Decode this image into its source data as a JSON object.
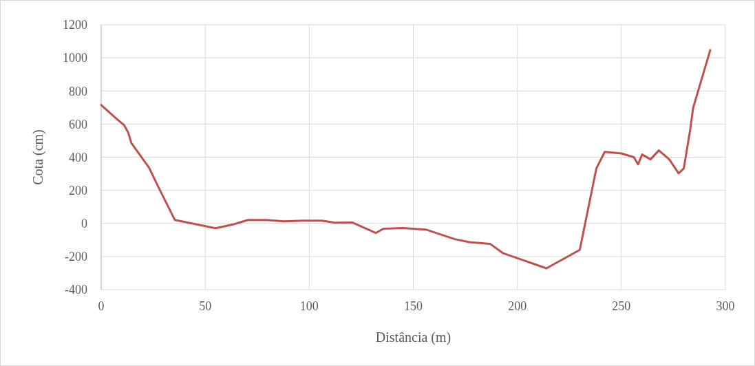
{
  "chart_data": {
    "type": "line",
    "xlabel": "Distância (m)",
    "ylabel": "Cota (cm)",
    "xlim": [
      0,
      300
    ],
    "xticks": [
      0,
      50,
      100,
      150,
      200,
      250,
      300
    ],
    "ylim": [
      -400,
      1200
    ],
    "yticks": [
      -400,
      -200,
      0,
      200,
      400,
      600,
      800,
      1000,
      1200
    ],
    "grid": true,
    "series": [
      {
        "color": "#c0504d",
        "x": [
          0,
          7,
          11,
          13,
          14.5,
          23,
          27.5,
          35.4,
          55,
          64,
          70.5,
          79.4,
          87.7,
          97,
          106,
          112.5,
          120.7,
          132,
          135.6,
          145,
          156,
          170,
          177,
          187,
          193,
          214,
          230,
          238,
          242,
          250,
          256,
          258,
          260,
          264,
          268,
          273,
          277.5,
          280,
          283,
          284.5,
          292.7
        ],
        "values": [
          715,
          636,
          594,
          549,
          486,
          337,
          220,
          21,
          -29,
          -4,
          21,
          21,
          12,
          17,
          17,
          4,
          6,
          -58,
          -32,
          -28,
          -37,
          -95,
          -113,
          -124,
          -179,
          -271,
          -160,
          333,
          432,
          423,
          400,
          357,
          416,
          387,
          441,
          387,
          303,
          332,
          560,
          698,
          1047
        ]
      }
    ]
  }
}
